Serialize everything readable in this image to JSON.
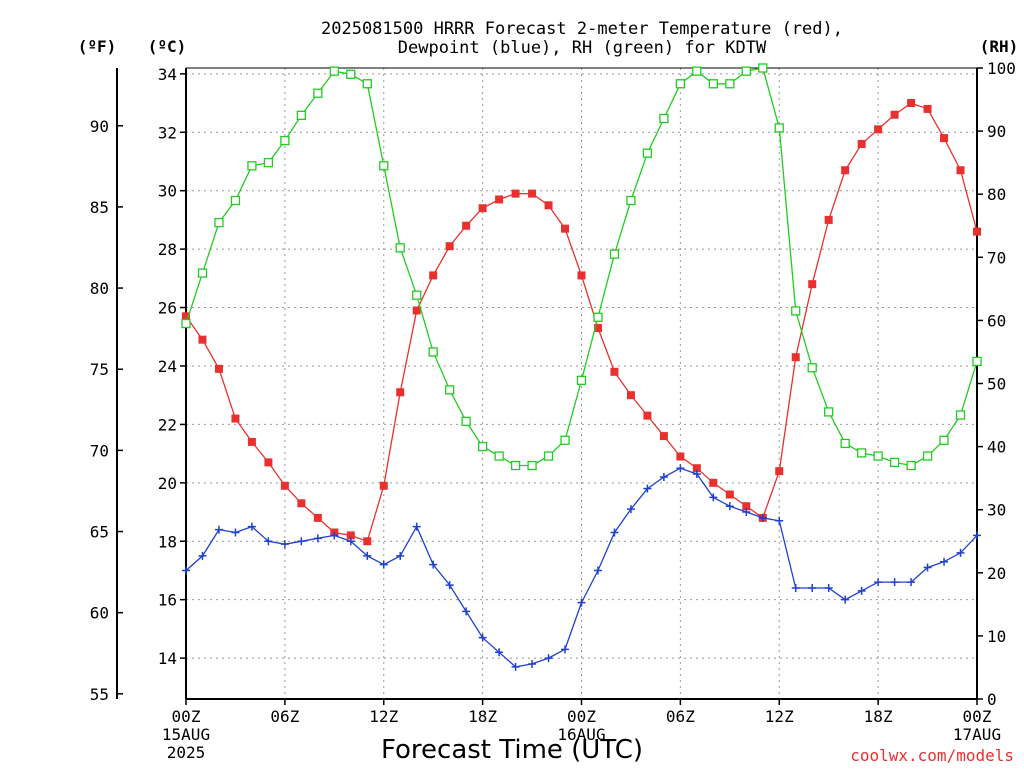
{
  "chart_data": {
    "type": "line",
    "title_line1": "2025081500 HRRR Forecast 2-meter Temperature (red),",
    "title_line2": "Dewpoint (blue), RH (green) for KDTW",
    "xlabel": "Forecast Time (UTC)",
    "credit": "coolwx.com/models",
    "unit_f": "(ºF)",
    "unit_c": "(ºC)",
    "unit_rh": "(RH)",
    "x_ticks": [
      {
        "hour": 0,
        "label": "00Z",
        "sub1": "15AUG",
        "sub2": "2025"
      },
      {
        "hour": 6,
        "label": "06Z",
        "sub1": "",
        "sub2": ""
      },
      {
        "hour": 12,
        "label": "12Z",
        "sub1": "",
        "sub2": ""
      },
      {
        "hour": 18,
        "label": "18Z",
        "sub1": "",
        "sub2": ""
      },
      {
        "hour": 24,
        "label": "00Z",
        "sub1": "16AUG",
        "sub2": ""
      },
      {
        "hour": 30,
        "label": "06Z",
        "sub1": "",
        "sub2": ""
      },
      {
        "hour": 36,
        "label": "12Z",
        "sub1": "",
        "sub2": ""
      },
      {
        "hour": 42,
        "label": "18Z",
        "sub1": "",
        "sub2": ""
      },
      {
        "hour": 48,
        "label": "00Z",
        "sub1": "17AUG",
        "sub2": ""
      }
    ],
    "xlim": [
      0,
      48
    ],
    "c_axis": {
      "range": [
        12.6,
        34.2
      ],
      "ticks": [
        14,
        16,
        18,
        20,
        22,
        24,
        26,
        28,
        30,
        32,
        34
      ]
    },
    "f_axis": {
      "ticks": [
        55,
        60,
        65,
        70,
        75,
        80,
        85,
        90
      ]
    },
    "rh_axis": {
      "range": [
        0,
        100
      ],
      "ticks": [
        0,
        10,
        20,
        30,
        40,
        50,
        60,
        70,
        80,
        90,
        100
      ]
    },
    "grid": true,
    "series": [
      {
        "name": "Temperature",
        "color": "#e8312f",
        "marker": "filled-square",
        "unit": "C",
        "x": [
          0,
          1,
          2,
          3,
          4,
          5,
          6,
          7,
          8,
          9,
          10,
          11,
          12,
          13,
          14,
          15,
          16,
          17,
          18,
          19,
          20,
          21,
          22,
          23,
          24,
          25,
          26,
          27,
          28,
          29,
          30,
          31,
          32,
          33,
          34,
          35,
          36,
          37,
          38,
          39,
          40,
          41,
          42,
          43,
          44,
          45,
          46,
          47,
          48
        ],
        "values": [
          25.7,
          24.9,
          23.9,
          22.2,
          21.4,
          20.7,
          19.9,
          19.3,
          18.8,
          18.3,
          18.2,
          18.0,
          19.9,
          23.1,
          25.9,
          27.1,
          28.1,
          28.8,
          29.4,
          29.7,
          29.9,
          29.9,
          29.5,
          28.7,
          27.1,
          25.3,
          23.8,
          23.0,
          22.3,
          21.6,
          20.9,
          20.5,
          20.0,
          19.6,
          19.2,
          18.8,
          20.4,
          24.3,
          26.8,
          29.0,
          30.7,
          31.6,
          32.1,
          32.6,
          33.0,
          32.8,
          31.8,
          30.7,
          28.6
        ]
      },
      {
        "name": "Dewpoint",
        "color": "#2040d0",
        "marker": "plus",
        "unit": "C",
        "x": [
          0,
          1,
          2,
          3,
          4,
          5,
          6,
          7,
          8,
          9,
          10,
          11,
          12,
          13,
          14,
          15,
          16,
          17,
          18,
          19,
          20,
          21,
          22,
          23,
          24,
          25,
          26,
          27,
          28,
          29,
          30,
          31,
          32,
          33,
          34,
          35,
          36,
          37,
          38,
          39,
          40,
          41,
          42,
          43,
          44,
          45,
          46,
          47,
          48
        ],
        "values": [
          17.0,
          17.5,
          18.4,
          18.3,
          18.5,
          18.0,
          17.9,
          18.0,
          18.1,
          18.2,
          18.0,
          17.5,
          17.2,
          17.5,
          18.5,
          17.2,
          16.5,
          15.6,
          14.7,
          14.2,
          13.7,
          13.8,
          14.0,
          14.3,
          15.9,
          17.0,
          18.3,
          19.1,
          19.8,
          20.2,
          20.5,
          20.3,
          19.5,
          19.2,
          19.0,
          18.8,
          18.7,
          16.4,
          16.4,
          16.4,
          16.0,
          16.3,
          16.6,
          16.6,
          16.6,
          17.1,
          17.3,
          17.6,
          18.2
        ]
      },
      {
        "name": "RH",
        "color": "#22cc22",
        "marker": "open-square",
        "unit": "%",
        "x": [
          0,
          1,
          2,
          3,
          4,
          5,
          6,
          7,
          8,
          9,
          10,
          11,
          12,
          13,
          14,
          15,
          16,
          17,
          18,
          19,
          20,
          21,
          22,
          23,
          24,
          25,
          26,
          27,
          28,
          29,
          30,
          31,
          32,
          33,
          34,
          35,
          36,
          37,
          38,
          39,
          40,
          41,
          42,
          43,
          44,
          45,
          46,
          47,
          48
        ],
        "values": [
          59.5,
          67.5,
          75.5,
          79.0,
          84.5,
          85.0,
          88.5,
          92.5,
          96.0,
          99.5,
          99.0,
          97.5,
          84.5,
          71.5,
          64.0,
          55.0,
          49.0,
          44.0,
          40.0,
          38.5,
          37.0,
          37.0,
          38.5,
          41.0,
          50.5,
          60.5,
          70.5,
          79.0,
          86.5,
          92.0,
          97.5,
          99.5,
          97.5,
          97.5,
          99.5,
          100.0,
          90.5,
          61.5,
          52.5,
          45.5,
          40.5,
          39.0,
          38.5,
          37.5,
          37.0,
          38.5,
          41.0,
          45.0,
          53.5
        ]
      }
    ]
  }
}
